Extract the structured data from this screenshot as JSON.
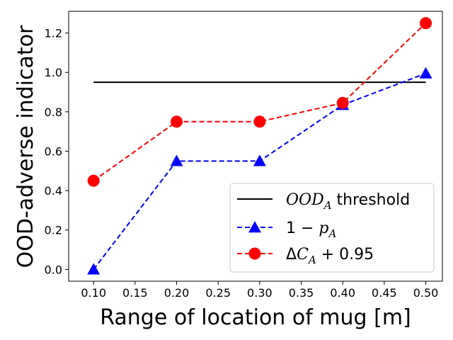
{
  "chart_data": {
    "type": "line",
    "xlabel": "Range of location of mug [m]",
    "ylabel": "OOD-adverse indicator",
    "xlim": [
      0.07,
      0.52
    ],
    "ylim": [
      -0.06,
      1.31
    ],
    "xticks": [
      0.1,
      0.15,
      0.2,
      0.25,
      0.3,
      0.35,
      0.4,
      0.45,
      0.5
    ],
    "xtick_labels": [
      "0.10",
      "0.15",
      "0.20",
      "0.25",
      "0.30",
      "0.35",
      "0.40",
      "0.45",
      "0.50"
    ],
    "yticks": [
      0.0,
      0.2,
      0.4,
      0.6,
      0.8,
      1.0,
      1.2
    ],
    "ytick_labels": [
      "0.0",
      "0.2",
      "0.4",
      "0.6",
      "0.8",
      "1.0",
      "1.2"
    ],
    "grid": false,
    "legend_position": "bottom-right",
    "threshold": {
      "legend_main": "OOD",
      "legend_sub": "A",
      "legend_suffix": " threshold",
      "y": 0.95,
      "x": [
        0.1,
        0.5
      ],
      "color": "#000000",
      "style": "solid"
    },
    "series": [
      {
        "legend_parts": [
          "1 − ",
          "p",
          "A"
        ],
        "x": [
          0.1,
          0.2,
          0.3,
          0.4,
          0.5
        ],
        "y": [
          0.0,
          0.55,
          0.55,
          0.835,
          0.995
        ],
        "color": "#0000ff",
        "marker": "triangle",
        "style": "dashed"
      },
      {
        "legend_parts": [
          "Δ",
          "C",
          "A",
          " + 0.95"
        ],
        "x": [
          0.1,
          0.2,
          0.3,
          0.4,
          0.5
        ],
        "y": [
          0.45,
          0.75,
          0.75,
          0.845,
          1.25
        ],
        "color": "#ff0000",
        "marker": "circle",
        "style": "dashed"
      }
    ]
  }
}
